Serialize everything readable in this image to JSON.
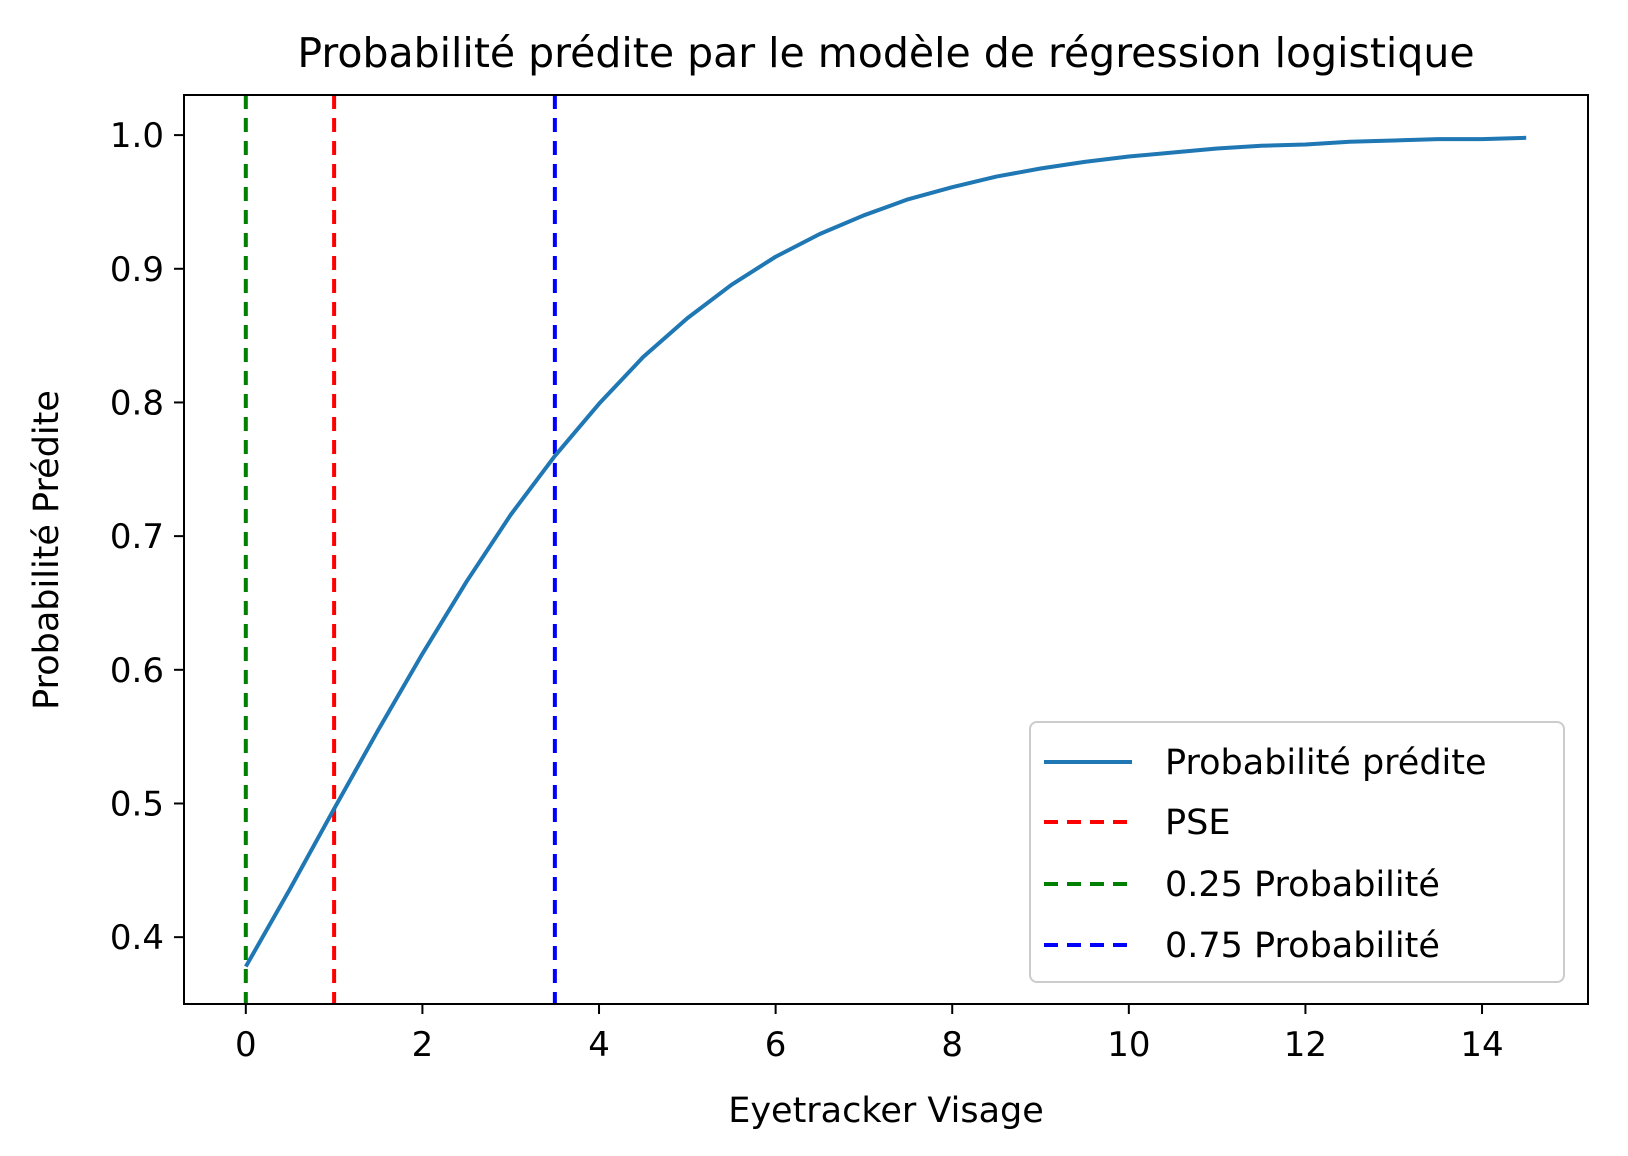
{
  "chart_data": {
    "type": "line",
    "title": "Probabilité prédite par le modèle de régression logistique",
    "xlabel": "Eyetracker Visage",
    "ylabel": "Probabilité Prédite",
    "xlim": [
      -0.7,
      15.2
    ],
    "ylim": [
      0.35,
      1.03
    ],
    "xticks": [
      0,
      2,
      4,
      6,
      8,
      10,
      12,
      14
    ],
    "xtick_labels": [
      "0",
      "2",
      "4",
      "6",
      "8",
      "10",
      "12",
      "14"
    ],
    "yticks": [
      0.4,
      0.5,
      0.6,
      0.7,
      0.8,
      0.9,
      1.0
    ],
    "ytick_labels": [
      "0.4",
      "0.5",
      "0.6",
      "0.7",
      "0.8",
      "0.9",
      "1.0"
    ],
    "grid": false,
    "legend_position": "lower-right",
    "series": [
      {
        "name": "Probabilité prédite",
        "color": "#1f77b4",
        "style": "solid",
        "x": [
          0,
          0.5,
          1,
          1.5,
          2,
          2.5,
          3,
          3.5,
          4,
          4.5,
          5,
          5.5,
          6,
          6.5,
          7,
          7.5,
          8,
          8.5,
          9,
          9.5,
          10,
          10.5,
          11,
          11.5,
          12,
          12.5,
          13,
          13.5,
          14,
          14.5
        ],
        "y": [
          0.378,
          0.436,
          0.496,
          0.555,
          0.612,
          0.666,
          0.716,
          0.76,
          0.799,
          0.834,
          0.863,
          0.888,
          0.909,
          0.926,
          0.94,
          0.952,
          0.961,
          0.969,
          0.975,
          0.98,
          0.984,
          0.987,
          0.99,
          0.992,
          0.993,
          0.995,
          0.996,
          0.997,
          0.997,
          0.998
        ]
      }
    ],
    "vlines": [
      {
        "name": "PSE",
        "x": 1.0,
        "color": "#ff0000",
        "style": "dashed"
      },
      {
        "name": "0.25 Probabilité",
        "x": 0.0,
        "color": "#008000",
        "style": "dashed"
      },
      {
        "name": "0.75 Probabilité",
        "x": 3.5,
        "color": "#0000ff",
        "style": "dashed"
      }
    ],
    "legend": [
      {
        "label": "Probabilité prédite",
        "color": "#1f77b4",
        "style": "solid"
      },
      {
        "label": "PSE",
        "color": "#ff0000",
        "style": "dashed"
      },
      {
        "label": "0.25 Probabilité",
        "color": "#008000",
        "style": "dashed"
      },
      {
        "label": "0.75 Probabilité",
        "color": "#0000ff",
        "style": "dashed"
      }
    ]
  }
}
